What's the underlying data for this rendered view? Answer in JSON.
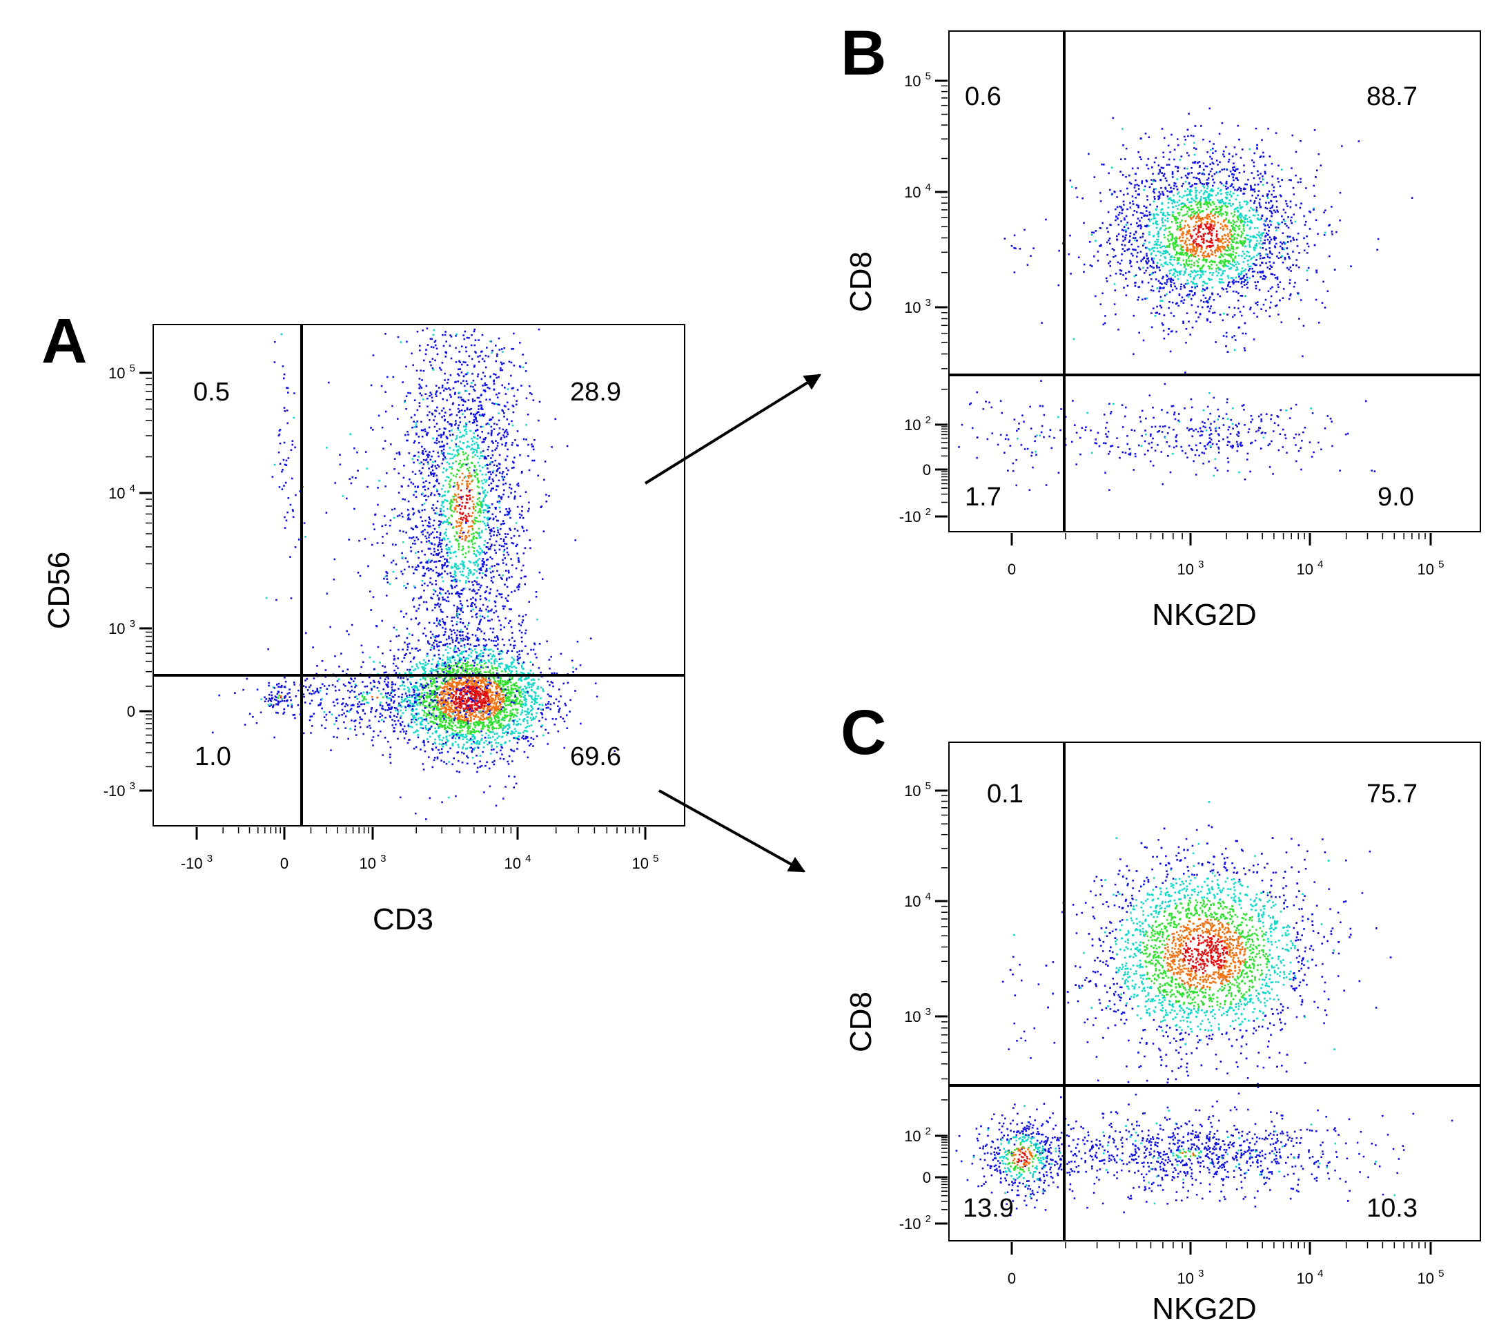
{
  "chart_data": [
    {
      "type": "scatter",
      "subtype": "flow-cytometry-density-plot",
      "panel": "A",
      "xlabel": "CD3",
      "ylabel": "CD56",
      "x_ticks": [
        {
          "base": "-10",
          "exp": "3"
        },
        {
          "base": "0",
          "exp": ""
        },
        {
          "base": "10",
          "exp": "3"
        },
        {
          "base": "10",
          "exp": "4"
        },
        {
          "base": "10",
          "exp": "5"
        }
      ],
      "y_ticks": [
        {
          "base": "10",
          "exp": "5"
        },
        {
          "base": "10",
          "exp": "4"
        },
        {
          "base": "10",
          "exp": "3"
        },
        {
          "base": "0",
          "exp": ""
        },
        {
          "base": "-10",
          "exp": "3"
        }
      ],
      "quadrants": {
        "upper_left": "0.5",
        "upper_right": "28.9",
        "lower_left": "1.0",
        "lower_right": "69.6"
      },
      "gate": {
        "x": 300,
        "y": 500
      },
      "populations": [
        {
          "label": "CD3+CD56- (main cluster)",
          "x": 5500,
          "y": 0,
          "density": "high"
        },
        {
          "label": "CD3+CD56+ (vertical band)",
          "x": 5000,
          "y": 15000,
          "density": "medium"
        },
        {
          "label": "CD3-CD56- (small cluster)",
          "x": 0,
          "y": 0,
          "density": "low"
        },
        {
          "label": "CD3-CD56+ (sparse)",
          "x": 0,
          "y": 25000,
          "density": "low"
        }
      ]
    },
    {
      "type": "scatter",
      "subtype": "flow-cytometry-density-plot",
      "panel": "B",
      "xlabel": "NKG2D",
      "ylabel": "CD8",
      "x_ticks": [
        {
          "base": "0",
          "exp": ""
        },
        {
          "base": "10",
          "exp": "3"
        },
        {
          "base": "10",
          "exp": "4"
        },
        {
          "base": "10",
          "exp": "5"
        }
      ],
      "y_ticks": [
        {
          "base": "10",
          "exp": "5"
        },
        {
          "base": "10",
          "exp": "4"
        },
        {
          "base": "10",
          "exp": "3"
        },
        {
          "base": "10",
          "exp": "2"
        },
        {
          "base": "0",
          "exp": ""
        },
        {
          "base": "-10",
          "exp": "2"
        }
      ],
      "quadrants": {
        "upper_left": "0.6",
        "upper_right": "88.7",
        "lower_left": "1.7",
        "lower_right": "9.0"
      },
      "gate": {
        "x": 150,
        "y": 400
      },
      "populations": [
        {
          "label": "NKG2D+CD8+ (main cluster)",
          "x": 1800,
          "y": 4000,
          "density": "high"
        },
        {
          "label": "NKG2D+CD8- (sparse)",
          "x": 1500,
          "y": 60,
          "density": "low"
        },
        {
          "label": "NKG2D-CD8- (sparse)",
          "x": 0,
          "y": 60,
          "density": "low"
        }
      ]
    },
    {
      "type": "scatter",
      "subtype": "flow-cytometry-density-plot",
      "panel": "C",
      "xlabel": "NKG2D",
      "ylabel": "CD8",
      "x_ticks": [
        {
          "base": "0",
          "exp": ""
        },
        {
          "base": "10",
          "exp": "3"
        },
        {
          "base": "10",
          "exp": "4"
        },
        {
          "base": "10",
          "exp": "5"
        }
      ],
      "y_ticks": [
        {
          "base": "10",
          "exp": "5"
        },
        {
          "base": "10",
          "exp": "4"
        },
        {
          "base": "10",
          "exp": "3"
        },
        {
          "base": "10",
          "exp": "2"
        },
        {
          "base": "0",
          "exp": ""
        },
        {
          "base": "-10",
          "exp": "2"
        }
      ],
      "quadrants": {
        "upper_left": "0.1",
        "upper_right": "75.7",
        "lower_left": "13.9",
        "lower_right": "10.3"
      },
      "gate": {
        "x": 150,
        "y": 400
      },
      "populations": [
        {
          "label": "NKG2D+CD8+ (main cluster)",
          "x": 1800,
          "y": 4000,
          "density": "high"
        },
        {
          "label": "NKG2D+CD8- (medium)",
          "x": 1500,
          "y": 40,
          "density": "medium"
        },
        {
          "label": "NKG2D-CD8- (cluster)",
          "x": 0,
          "y": 30,
          "density": "medium"
        }
      ]
    }
  ],
  "panel_labels": [
    "A",
    "B",
    "C"
  ],
  "colors": {
    "low": "#1010e0",
    "mid": "#10d8c8",
    "high": "#30e030",
    "peak": "#f07010",
    "max": "#e01010"
  }
}
